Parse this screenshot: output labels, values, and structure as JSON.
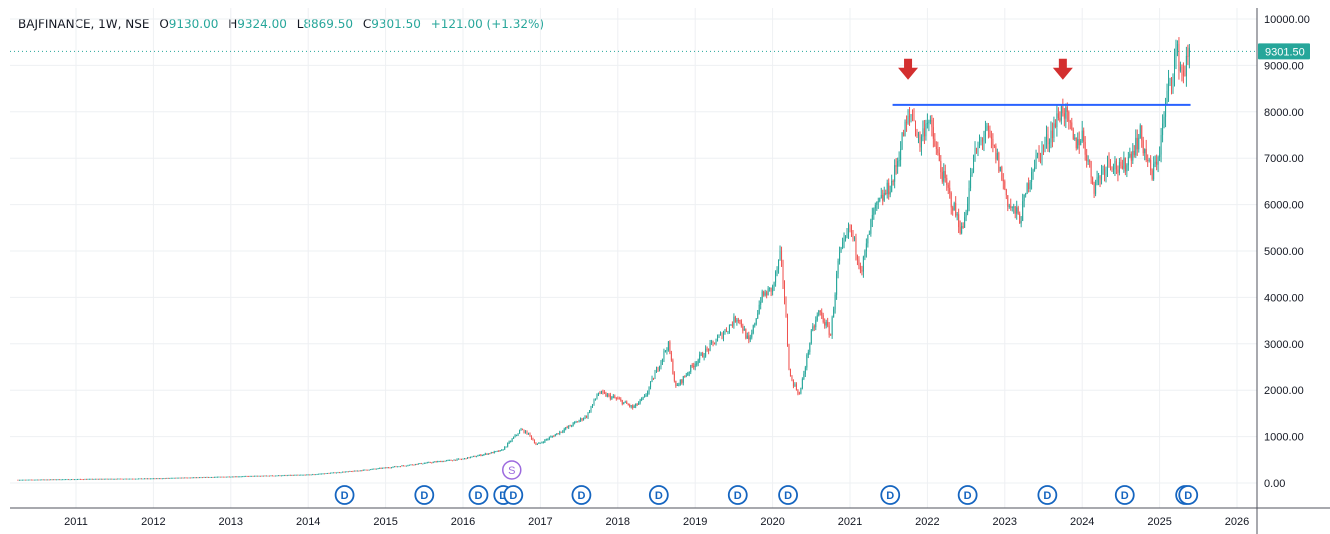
{
  "header": {
    "symbol": "BAJFINANCE, 1W, NSE",
    "open_label": "O",
    "open": "9130.00",
    "high_label": "H",
    "high": "9324.00",
    "low_label": "L",
    "low": "8869.50",
    "close_label": "C",
    "close": "9301.50",
    "change": "+121.00 (+1.32%)"
  },
  "colors": {
    "up": "#26a69a",
    "down": "#ef5350",
    "trendline": "#2962ff",
    "arrow": "#d32f2f",
    "grid": "#eef0f3",
    "axis_text": "#131722",
    "price_tag": "#26a69a",
    "dividend": "#1565c0",
    "split": "#9c6ade",
    "extra_event": "#26a69a"
  },
  "chart_data": {
    "type": "candlestick",
    "interval": "1W",
    "scale": "linear",
    "grid": true,
    "x_ticks": [
      "2011",
      "2012",
      "2013",
      "2014",
      "2015",
      "2016",
      "2017",
      "2018",
      "2019",
      "2020",
      "2021",
      "2022",
      "2023",
      "2024",
      "2025",
      "2026"
    ],
    "y_ticks": [
      "0.00",
      "1000.00",
      "2000.00",
      "3000.00",
      "4000.00",
      "5000.00",
      "6000.00",
      "7000.00",
      "8000.00",
      "9000.00",
      "10000.00"
    ],
    "ylim": [
      0,
      10000
    ],
    "last_price_label": "9301.50",
    "last_price": 9301.5,
    "price_path": [
      [
        2010.25,
        70
      ],
      [
        2011.0,
        85
      ],
      [
        2012.0,
        100
      ],
      [
        2013.0,
        140
      ],
      [
        2014.0,
        180
      ],
      [
        2014.6,
        260
      ],
      [
        2015.0,
        330
      ],
      [
        2015.5,
        430
      ],
      [
        2016.0,
        520
      ],
      [
        2016.5,
        700
      ],
      [
        2016.75,
        1150
      ],
      [
        2016.85,
        1050
      ],
      [
        2016.95,
        820
      ],
      [
        2017.2,
        1050
      ],
      [
        2017.6,
        1450
      ],
      [
        2017.75,
        1950
      ],
      [
        2018.0,
        1800
      ],
      [
        2018.2,
        1620
      ],
      [
        2018.35,
        1850
      ],
      [
        2018.65,
        3000
      ],
      [
        2018.75,
        2050
      ],
      [
        2019.0,
        2600
      ],
      [
        2019.4,
        3300
      ],
      [
        2019.55,
        3600
      ],
      [
        2019.7,
        3000
      ],
      [
        2019.85,
        4000
      ],
      [
        2020.0,
        4200
      ],
      [
        2020.1,
        4900
      ],
      [
        2020.15,
        4100
      ],
      [
        2020.22,
        2300
      ],
      [
        2020.35,
        1900
      ],
      [
        2020.5,
        3200
      ],
      [
        2020.6,
        3700
      ],
      [
        2020.75,
        3200
      ],
      [
        2020.85,
        4800
      ],
      [
        2021.0,
        5500
      ],
      [
        2021.15,
        4600
      ],
      [
        2021.3,
        5800
      ],
      [
        2021.55,
        6500
      ],
      [
        2021.7,
        7600
      ],
      [
        2021.8,
        8000
      ],
      [
        2021.9,
        7300
      ],
      [
        2022.0,
        7900
      ],
      [
        2022.2,
        6600
      ],
      [
        2022.45,
        5400
      ],
      [
        2022.6,
        7000
      ],
      [
        2022.75,
        7600
      ],
      [
        2022.9,
        7000
      ],
      [
        2023.05,
        6000
      ],
      [
        2023.2,
        5700
      ],
      [
        2023.35,
        6800
      ],
      [
        2023.55,
        7400
      ],
      [
        2023.75,
        8100
      ],
      [
        2023.9,
        7300
      ],
      [
        2024.0,
        7500
      ],
      [
        2024.15,
        6400
      ],
      [
        2024.35,
        7000
      ],
      [
        2024.5,
        6700
      ],
      [
        2024.75,
        7500
      ],
      [
        2024.9,
        6600
      ],
      [
        2025.0,
        7200
      ],
      [
        2025.1,
        8400
      ],
      [
        2025.22,
        9300
      ],
      [
        2025.3,
        8800
      ],
      [
        2025.4,
        9300
      ]
    ],
    "resistance_line": {
      "x0": 2021.55,
      "x1": 2025.4,
      "y0": 8150,
      "y1": 8150
    },
    "arrows": [
      {
        "x": 2021.75,
        "y": 8950
      },
      {
        "x": 2023.75,
        "y": 8950
      }
    ],
    "events": [
      {
        "type": "D",
        "x": 2014.47
      },
      {
        "type": "D",
        "x": 2015.5
      },
      {
        "type": "D",
        "x": 2016.2
      },
      {
        "type": "D",
        "x": 2016.52
      },
      {
        "type": "D",
        "x": 2016.65
      },
      {
        "type": "S",
        "x": 2016.63
      },
      {
        "type": "D",
        "x": 2017.53
      },
      {
        "type": "D",
        "x": 2018.53
      },
      {
        "type": "D",
        "x": 2019.55
      },
      {
        "type": "D",
        "x": 2020.2
      },
      {
        "type": "D",
        "x": 2021.52
      },
      {
        "type": "D",
        "x": 2022.52
      },
      {
        "type": "D",
        "x": 2023.55
      },
      {
        "type": "D",
        "x": 2024.55
      },
      {
        "type": "D",
        "x": 2025.33
      },
      {
        "type": "D",
        "x": 2025.37
      }
    ]
  }
}
